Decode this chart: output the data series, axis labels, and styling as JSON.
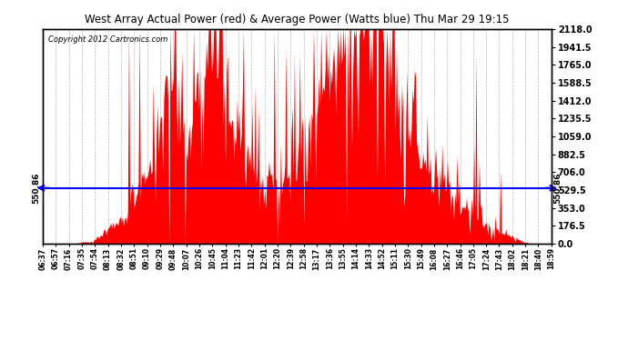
{
  "title": "West Array Actual Power (red) & Average Power (Watts blue) Thu Mar 29 19:15",
  "copyright": "Copyright 2012 Cartronics.com",
  "average_power": 550.86,
  "y_max": 2118.0,
  "y_ticks": [
    0.0,
    176.5,
    353.0,
    529.5,
    706.0,
    882.5,
    1059.0,
    1235.5,
    1412.0,
    1588.5,
    1765.0,
    1941.5,
    2118.0
  ],
  "x_labels": [
    "06:37",
    "06:57",
    "07:16",
    "07:35",
    "07:54",
    "08:13",
    "08:32",
    "08:51",
    "09:10",
    "09:29",
    "09:48",
    "10:07",
    "10:26",
    "10:45",
    "11:04",
    "11:23",
    "11:42",
    "12:01",
    "12:20",
    "12:39",
    "12:58",
    "13:17",
    "13:36",
    "13:55",
    "14:14",
    "14:33",
    "14:52",
    "15:11",
    "15:30",
    "15:49",
    "16:08",
    "16:27",
    "16:46",
    "17:05",
    "17:24",
    "17:43",
    "18:02",
    "18:21",
    "18:40",
    "18:59"
  ],
  "bg_color": "#ffffff",
  "plot_bg_color": "#ffffff",
  "bar_color": "#ff0000",
  "line_color": "#0000ff",
  "grid_color": "#999999",
  "border_color": "#000000"
}
